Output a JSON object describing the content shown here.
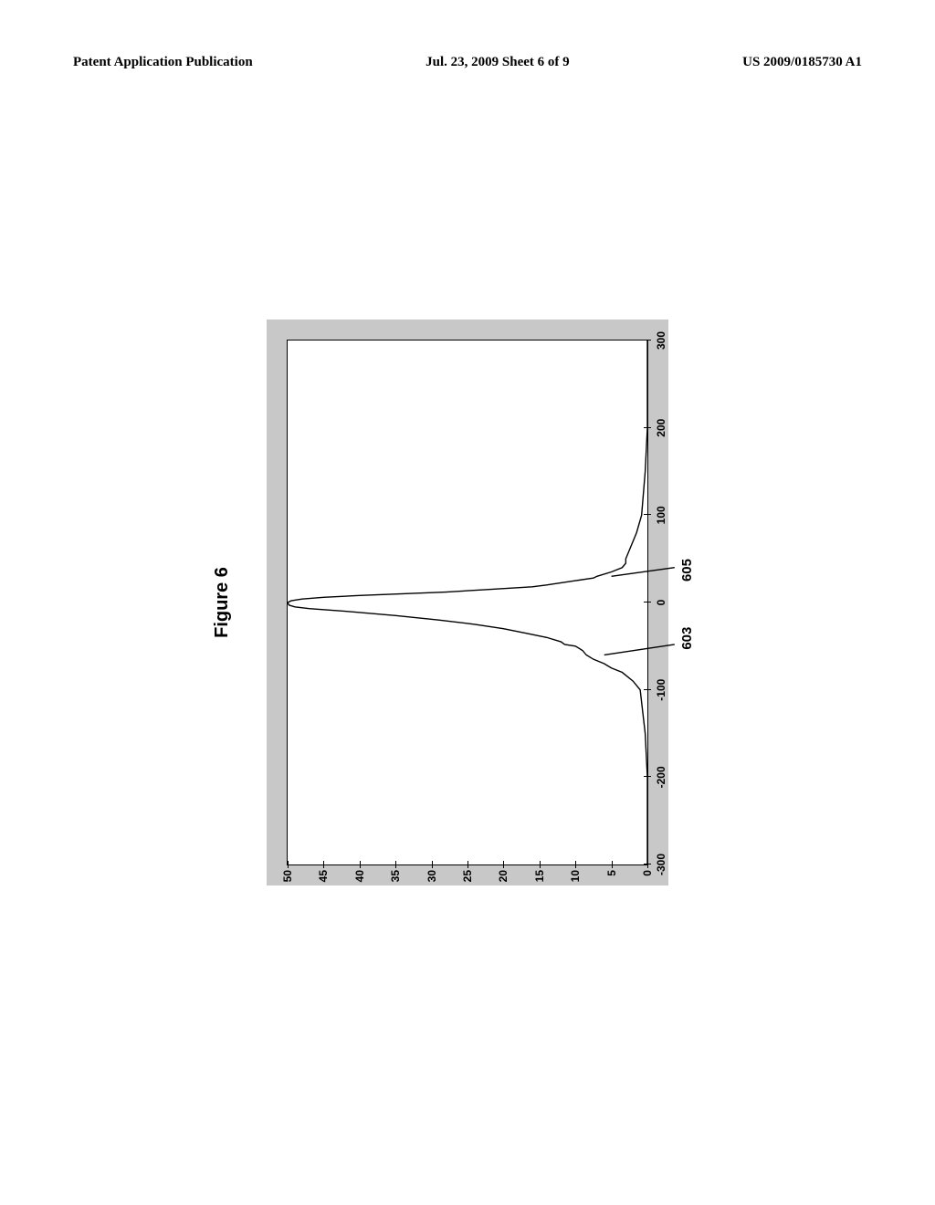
{
  "header": {
    "left": "Patent Application Publication",
    "center": "Jul. 23, 2009  Sheet 6 of 9",
    "right": "US 2009/0185730 A1"
  },
  "figure": {
    "title": "Figure 6",
    "xlim": [
      -300,
      300
    ],
    "ylim": [
      0,
      50
    ],
    "xticks": [
      -300,
      -200,
      -100,
      0,
      100,
      200,
      300
    ],
    "yticks": [
      0,
      5,
      10,
      15,
      20,
      25,
      30,
      35,
      40,
      45,
      50
    ],
    "background_color": "#ffffff",
    "frame_color": "#c8c8c8",
    "line_color": "#000000",
    "line_width": 1.5,
    "curve_603": [
      [
        -300,
        0
      ],
      [
        -250,
        0
      ],
      [
        -200,
        0
      ],
      [
        -150,
        0.3
      ],
      [
        -100,
        1
      ],
      [
        -90,
        2
      ],
      [
        -80,
        3.5
      ],
      [
        -75,
        5
      ],
      [
        -70,
        6
      ],
      [
        -65,
        7.5
      ],
      [
        -60,
        8.5
      ],
      [
        -55,
        9
      ],
      [
        -50,
        10
      ],
      [
        -48,
        11.5
      ],
      [
        -45,
        12
      ],
      [
        -40,
        14
      ],
      [
        -35,
        17
      ],
      [
        -30,
        20
      ],
      [
        -25,
        24
      ],
      [
        -20,
        29
      ],
      [
        -15,
        35
      ],
      [
        -10,
        42
      ],
      [
        -7,
        47
      ],
      [
        -5,
        49
      ],
      [
        -3,
        49.8
      ],
      [
        0,
        50
      ]
    ],
    "curve_605": [
      [
        300,
        0
      ],
      [
        250,
        0
      ],
      [
        200,
        0
      ],
      [
        150,
        0.3
      ],
      [
        100,
        0.8
      ],
      [
        80,
        1.5
      ],
      [
        60,
        2.5
      ],
      [
        50,
        3
      ],
      [
        45,
        3
      ],
      [
        40,
        3.5
      ],
      [
        35,
        5
      ],
      [
        30,
        7
      ],
      [
        28,
        7.5
      ],
      [
        25,
        10
      ],
      [
        20,
        14
      ],
      [
        18,
        16
      ],
      [
        15,
        22
      ],
      [
        12,
        28
      ],
      [
        10,
        34
      ],
      [
        8,
        40
      ],
      [
        6,
        45
      ],
      [
        4,
        48
      ],
      [
        2,
        49.5
      ],
      [
        0,
        50
      ]
    ],
    "ref_labels": {
      "r603": "603",
      "r605": "605"
    }
  }
}
